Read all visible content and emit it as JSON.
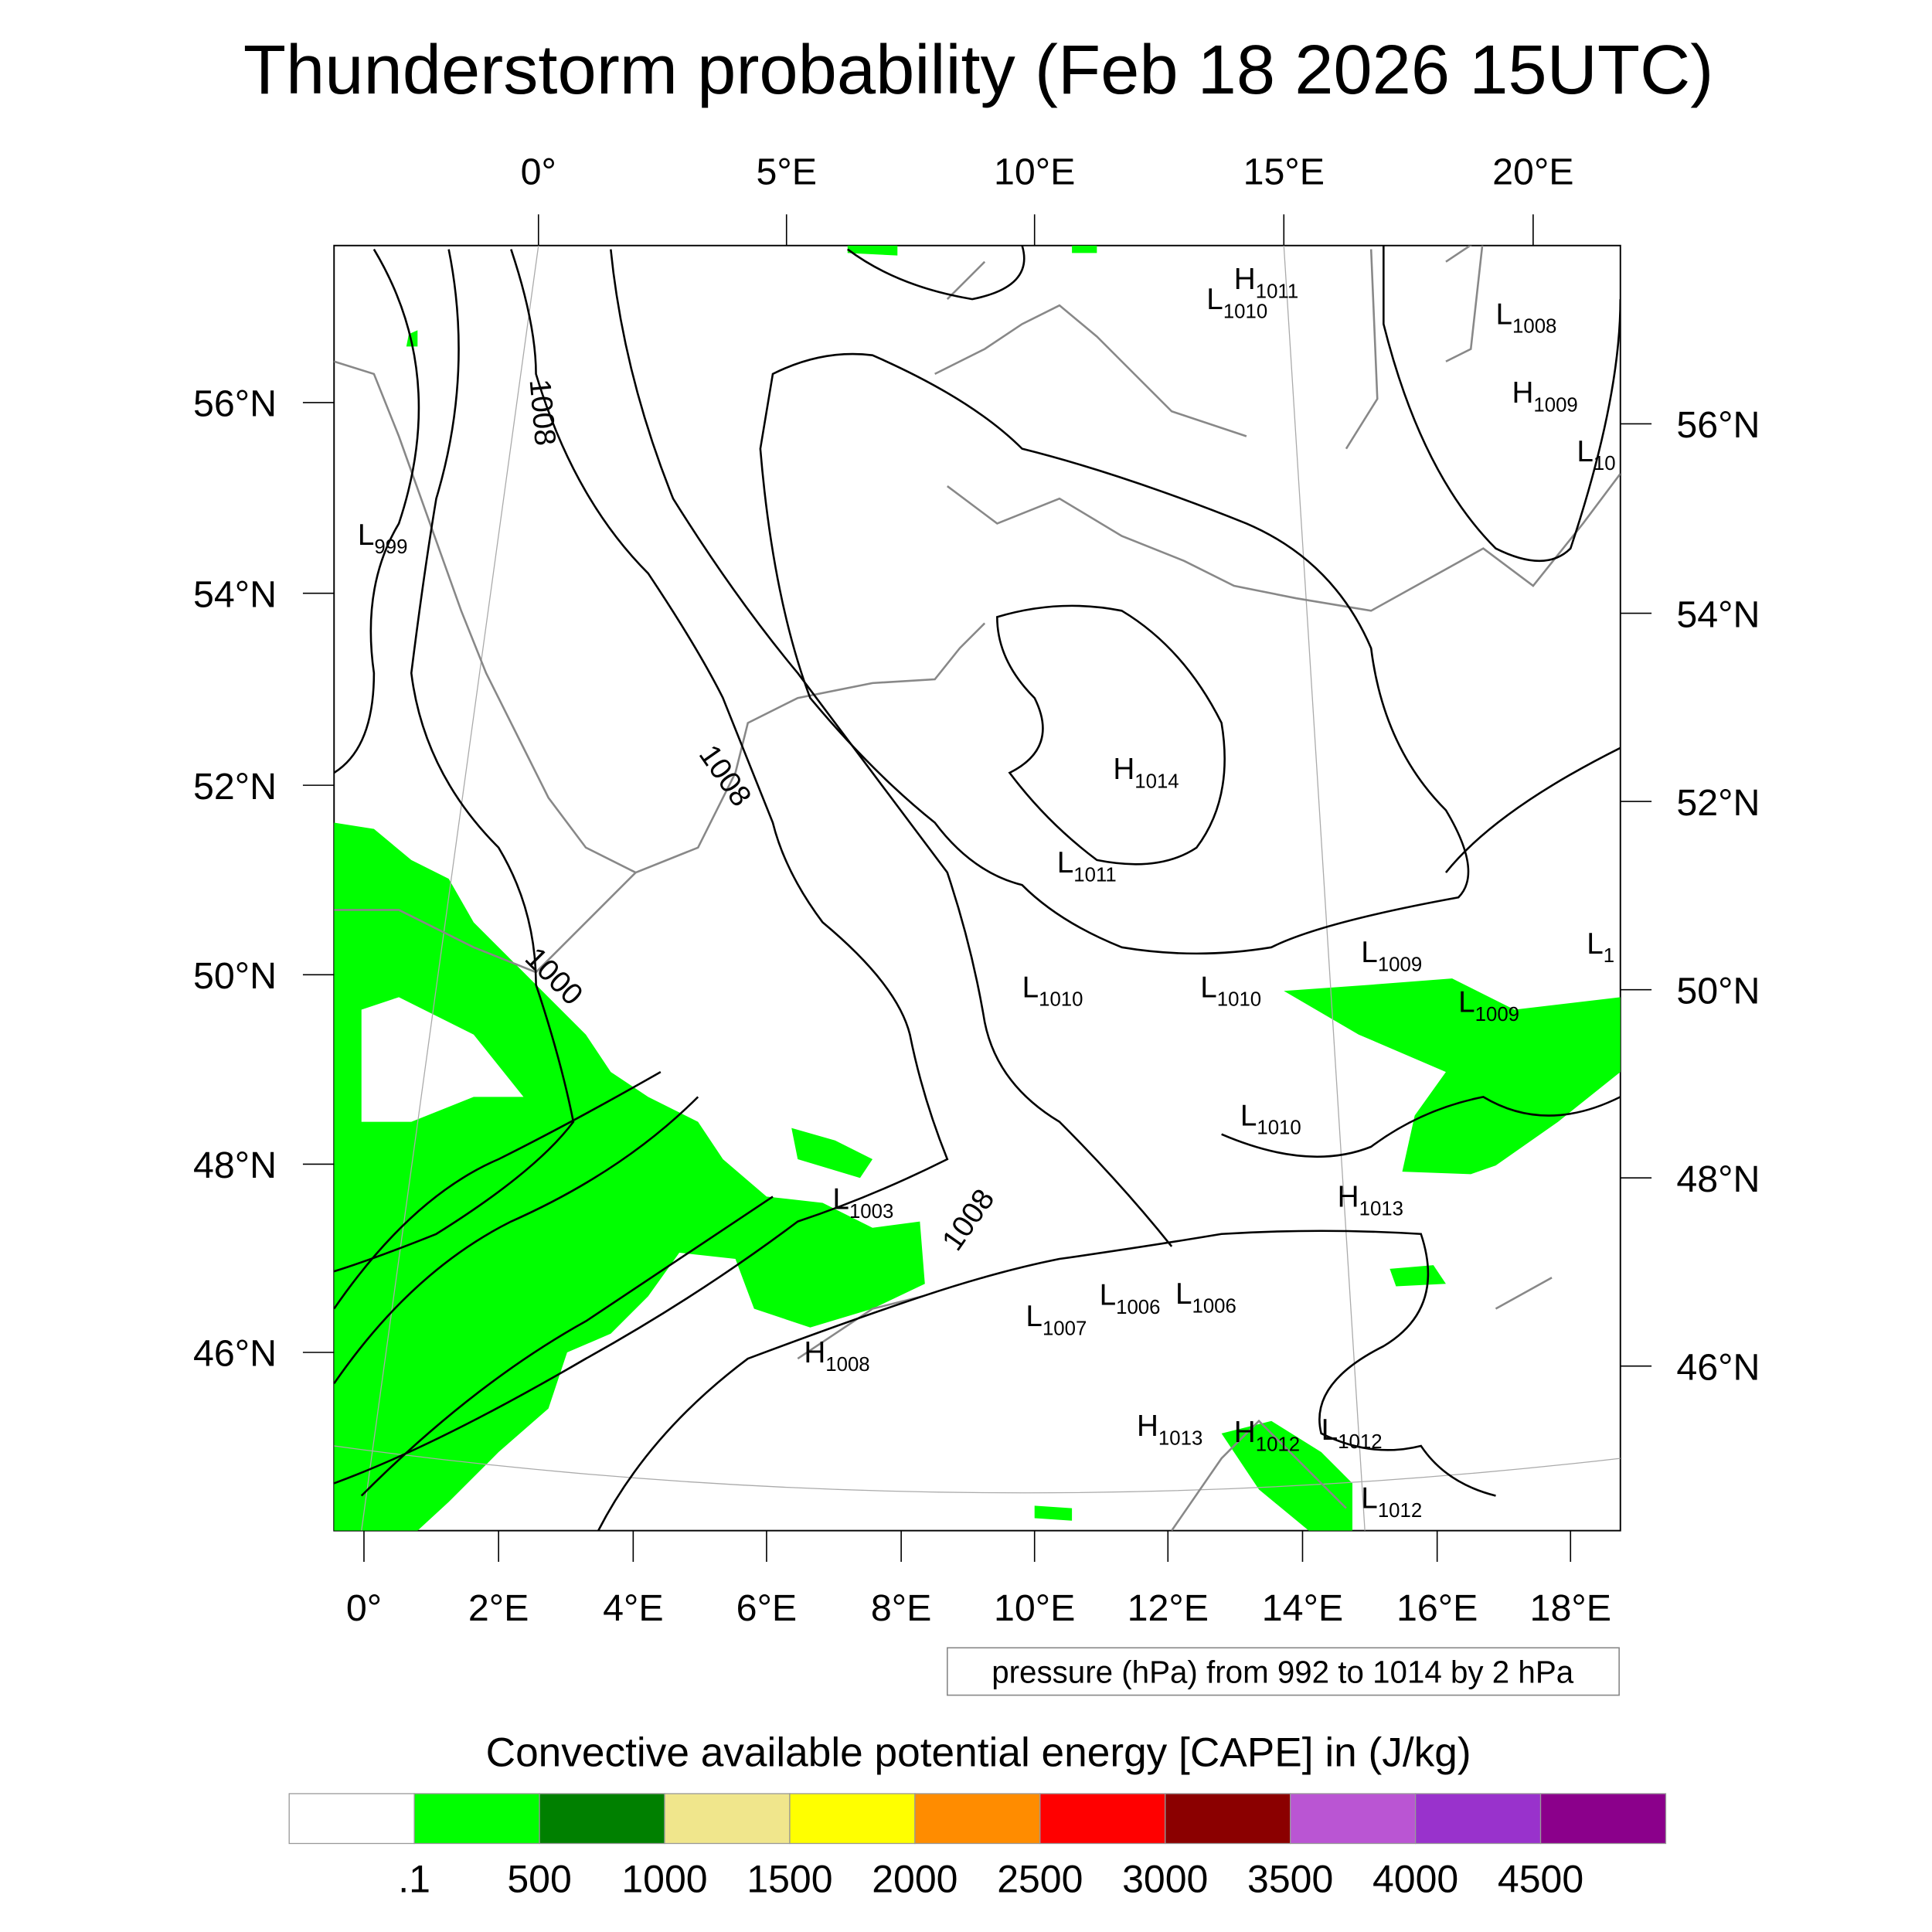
{
  "chart_data": {
    "type": "heatmap",
    "title": "Thunderstorm probability (Feb 18 2026 15UTC)",
    "map_projection": "lambert-conformal",
    "top_lon_labels": [
      "0°",
      "5°E",
      "10°E",
      "15°E",
      "20°E"
    ],
    "bottom_lon_labels": [
      "0°",
      "2°E",
      "4°E",
      "6°E",
      "8°E",
      "10°E",
      "12°E",
      "14°E",
      "16°E",
      "18°E"
    ],
    "left_lat_labels": [
      "56°N",
      "54°N",
      "52°N",
      "50°N",
      "48°N",
      "46°N"
    ],
    "right_lat_labels": [
      "56°N",
      "54°N",
      "52°N",
      "50°N",
      "48°N",
      "46°N"
    ],
    "contour_info": "pressure (hPa) from 992 to 1014 by 2 hPa",
    "contour_labels": [
      "1008",
      "1008",
      "1000",
      "1008"
    ],
    "pressure_centers": [
      {
        "type": "H",
        "value": "1011"
      },
      {
        "type": "L",
        "value": "1010"
      },
      {
        "type": "L",
        "value": "1008"
      },
      {
        "type": "H",
        "value": "1009"
      },
      {
        "type": "L",
        "value": "10"
      },
      {
        "type": "L",
        "value": "999"
      },
      {
        "type": "H",
        "value": "1014"
      },
      {
        "type": "L",
        "value": "1011"
      },
      {
        "type": "L",
        "value": "1009"
      },
      {
        "type": "L",
        "value": "1"
      },
      {
        "type": "L",
        "value": "1010"
      },
      {
        "type": "L",
        "value": "1010"
      },
      {
        "type": "L",
        "value": "1009"
      },
      {
        "type": "L",
        "value": "1010"
      },
      {
        "type": "L",
        "value": "1003"
      },
      {
        "type": "H",
        "value": "1013"
      },
      {
        "type": "L",
        "value": "1006"
      },
      {
        "type": "L",
        "value": "1007"
      },
      {
        "type": "L",
        "value": "1006"
      },
      {
        "type": "H",
        "value": "1008"
      },
      {
        "type": "H",
        "value": "1013"
      },
      {
        "type": "H",
        "value": "1012"
      },
      {
        "type": "L",
        "value": "1012"
      },
      {
        "type": "L",
        "value": "1012"
      }
    ],
    "colorbar": {
      "title": "Convective available potential energy [CAPE] in (J/kg)",
      "levels": [
        ".1",
        "500",
        "1000",
        "1500",
        "2000",
        "2500",
        "3000",
        "3500",
        "4000",
        "4500"
      ],
      "colors": [
        "#ffffff",
        "#00ff00",
        "#008000",
        "#f0e68c",
        "#ffff00",
        "#ff8c00",
        "#ff0000",
        "#8b0000",
        "#ba55d3",
        "#9932cc",
        "#8b008b"
      ]
    },
    "field_color": "#00ff00"
  }
}
